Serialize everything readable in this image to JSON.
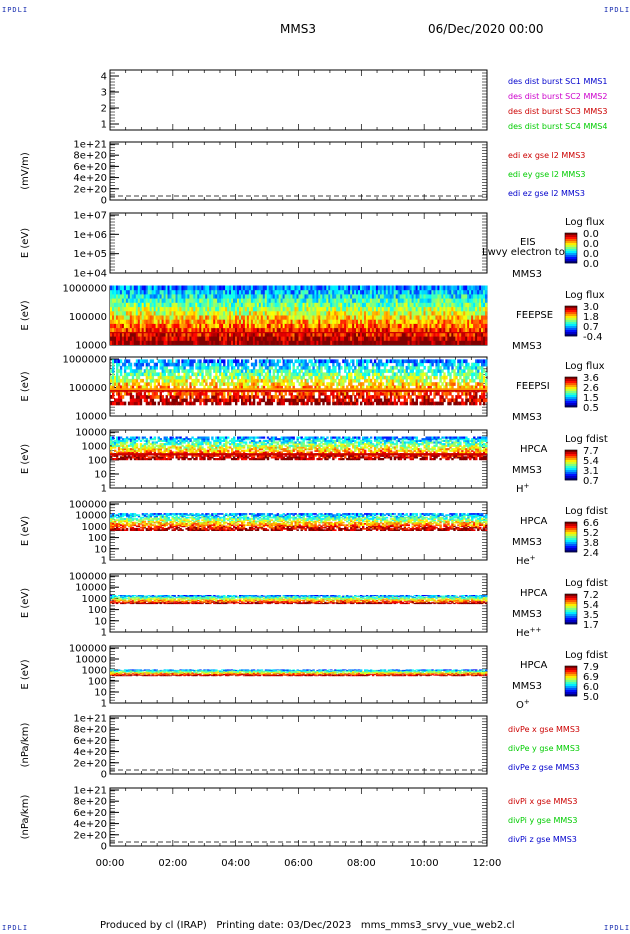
{
  "corners": {
    "tl": "IPDLI",
    "tr": "IPDLI",
    "bl": "IPDLI",
    "br": "IPDLI"
  },
  "header": {
    "spacecraft": "MMS3",
    "date": "06/Dec/2020 00:00"
  },
  "footer": {
    "text": "Produced by cl (IRAP)   Printing date: 03/Dec/2023   mms_mms3_srvy_vue_web2.cl"
  },
  "colors": {
    "mms1": "#0000cc",
    "mms2": "#cc00cc",
    "mms3": "#cc0000",
    "mms4": "#00cc00",
    "ex": "#cc0000",
    "ey": "#00cc00",
    "ez": "#0000cc"
  },
  "chart_data": [
    {
      "id": "p1",
      "type": "line",
      "ylim": [
        0.5,
        4.5
      ],
      "yticks": [
        "1",
        "2",
        "3",
        "4"
      ],
      "legend": [
        {
          "text": "des dist burst SC1 MMS1",
          "color": "#0000cc"
        },
        {
          "text": "des dist burst SC2 MMS2",
          "color": "#cc00cc"
        },
        {
          "text": "des dist burst SC3 MMS3",
          "color": "#cc0000"
        },
        {
          "text": "des dist burst SC4 MMS4",
          "color": "#00cc00"
        }
      ]
    },
    {
      "id": "p2",
      "type": "line",
      "ylabel": "(mV/m)",
      "yticks": [
        "0",
        "2e+20",
        "4e+20",
        "6e+20",
        "8e+20",
        "1e+21"
      ],
      "legend": [
        {
          "text": "edi ex gse l2 MMS3",
          "color": "#cc0000"
        },
        {
          "text": "edi ey gse l2 MMS3",
          "color": "#00cc00"
        },
        {
          "text": "edi ez gse l2 MMS3",
          "color": "#0000cc"
        }
      ]
    },
    {
      "id": "p3",
      "type": "heatmap",
      "ylabel": "E (eV)",
      "yticks": [
        "1e+04",
        "1e+05",
        "1e+06",
        "1e+07"
      ],
      "inst": "EIS",
      "sc": "MMS3",
      "overlap": "Lwvy electron to",
      "cbar_title": "Log flux",
      "cbar_ticks": [
        "0.0",
        "0.0",
        "0.0",
        "0.0"
      ]
    },
    {
      "id": "p4",
      "type": "heatmap",
      "ylabel": "E (eV)",
      "yticks": [
        "10000",
        "100000",
        "1000000"
      ],
      "inst": "FEEPSE",
      "sc": "MMS3",
      "cbar_title": "Log flux",
      "cbar_ticks": [
        "3.0",
        "1.8",
        "0.7",
        "-0.4"
      ]
    },
    {
      "id": "p5",
      "type": "heatmap",
      "ylabel": "E (eV)",
      "yticks": [
        "10000",
        "100000",
        "1000000"
      ],
      "inst": "FEEPSI",
      "sc": "MMS3",
      "cbar_title": "Log flux",
      "cbar_ticks": [
        "3.6",
        "2.6",
        "1.5",
        "0.5"
      ]
    },
    {
      "id": "p6",
      "type": "heatmap",
      "ylabel": "E (eV)",
      "yticks": [
        "1",
        "10",
        "100",
        "1000",
        "10000"
      ],
      "inst": "HPCA",
      "sc": "MMS3",
      "ion": "H",
      "ion_sup": "+",
      "cbar_title": "Log fdist",
      "cbar_ticks": [
        "7.7",
        "5.4",
        "3.1",
        "0.7"
      ]
    },
    {
      "id": "p7",
      "type": "heatmap",
      "ylabel": "E (eV)",
      "yticks": [
        "1",
        "10",
        "100",
        "1000",
        "10000",
        "100000"
      ],
      "inst": "HPCA",
      "sc": "MMS3",
      "ion": "He",
      "ion_sup": "+",
      "cbar_title": "Log fdist",
      "cbar_ticks": [
        "6.6",
        "5.2",
        "3.8",
        "2.4"
      ]
    },
    {
      "id": "p8",
      "type": "heatmap",
      "ylabel": "E (eV)",
      "yticks": [
        "1",
        "10",
        "100",
        "1000",
        "10000",
        "100000"
      ],
      "inst": "HPCA",
      "sc": "MMS3",
      "ion": "He",
      "ion_sup": "++",
      "cbar_title": "Log fdist",
      "cbar_ticks": [
        "7.2",
        "5.4",
        "3.5",
        "1.7"
      ]
    },
    {
      "id": "p9",
      "type": "heatmap",
      "ylabel": "E (eV)",
      "yticks": [
        "1",
        "10",
        "100",
        "1000",
        "10000",
        "100000"
      ],
      "inst": "HPCA",
      "sc": "MMS3",
      "ion": "O",
      "ion_sup": "+",
      "cbar_title": "Log fdist",
      "cbar_ticks": [
        "7.9",
        "6.9",
        "6.0",
        "5.0"
      ]
    },
    {
      "id": "p10",
      "type": "line",
      "ylabel": "(nPa/km)",
      "yticks": [
        "0",
        "2e+20",
        "4e+20",
        "6e+20",
        "8e+20",
        "1e+21"
      ],
      "legend": [
        {
          "text": "divPe x gse MMS3",
          "color": "#cc0000"
        },
        {
          "text": "divPe y gse MMS3",
          "color": "#00cc00"
        },
        {
          "text": "divPe z gse MMS3",
          "color": "#0000cc"
        }
      ]
    },
    {
      "id": "p11",
      "type": "line",
      "ylabel": "(nPa/km)",
      "yticks": [
        "0",
        "2e+20",
        "4e+20",
        "6e+20",
        "8e+20",
        "1e+21"
      ],
      "legend": [
        {
          "text": "divPi x gse MMS3",
          "color": "#cc0000"
        },
        {
          "text": "divPi y gse MMS3",
          "color": "#00cc00"
        },
        {
          "text": "divPi z gse MMS3",
          "color": "#0000cc"
        }
      ]
    }
  ],
  "xaxis": {
    "ticks": [
      "00:00",
      "02:00",
      "04:00",
      "06:00",
      "08:00",
      "10:00",
      "12:00"
    ]
  }
}
